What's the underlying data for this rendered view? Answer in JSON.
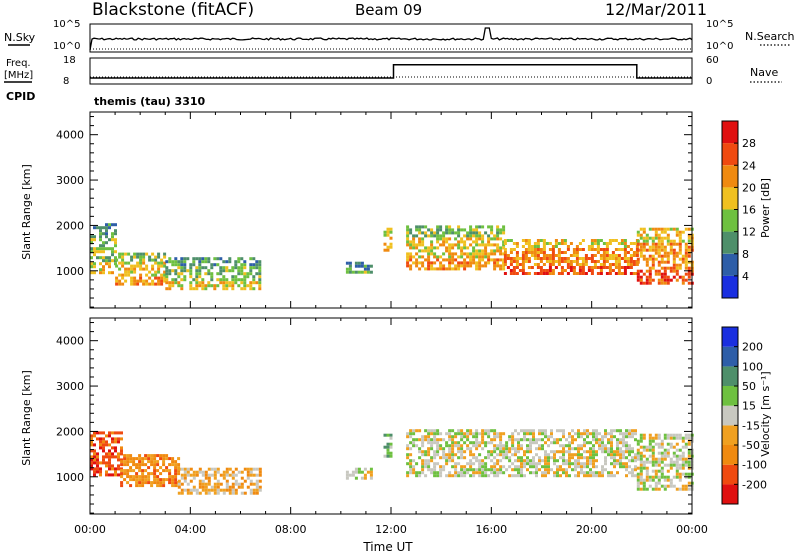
{
  "header": {
    "station": "Blackstone (fitACF)",
    "beam": "Beam 09",
    "date": "12/Mar/2011"
  },
  "nsky_panel": {
    "left_label": "N.Sky",
    "left_ticks": [
      "10^5",
      "10^0"
    ],
    "right_label": "N.Search",
    "right_ticks": [
      "10^5",
      "10^0"
    ]
  },
  "freq_panel": {
    "left_label_1": "Freq.",
    "left_label_2": "[MHz]",
    "left_ticks": [
      "18",
      "8"
    ],
    "right_label": "Nave",
    "right_ticks": [
      "60",
      "0"
    ],
    "cpid_label": "CPID",
    "cpid_text": "themis (tau) 3310",
    "freq_steps": [
      {
        "t0": 0.0,
        "t1": 12.1,
        "mhz": 10.5
      },
      {
        "t0": 12.1,
        "t1": 21.8,
        "mhz": 16.0
      },
      {
        "t0": 21.8,
        "t1": 24.0,
        "mhz": 10.5
      }
    ]
  },
  "x_axis": {
    "ticks": [
      "00:00",
      "04:00",
      "08:00",
      "12:00",
      "16:00",
      "20:00",
      "00:00"
    ],
    "label": "Time UT"
  },
  "chart_data": [
    {
      "type": "heatmap",
      "panel": "power",
      "ylabel": "Slant Range [km]",
      "yticks": [
        "1000",
        "2000",
        "3000",
        "4000"
      ],
      "xlim": [
        0,
        24
      ],
      "ylim": [
        180,
        4500
      ],
      "colorbar_label": "Power [dB]",
      "colorbar_ticks": [
        "4",
        "8",
        "12",
        "16",
        "20",
        "24",
        "28"
      ],
      "colorbar_colors": [
        "#1a2fe0",
        "#2e5ea8",
        "#4e8f6a",
        "#6ec040",
        "#f0c020",
        "#f08a10",
        "#f04a10",
        "#e01010"
      ],
      "echo_regions": [
        {
          "t0": 0.0,
          "t1": 1.0,
          "r0": 950,
          "r1": 2050,
          "level": 3
        },
        {
          "t0": 1.0,
          "t1": 3.0,
          "r0": 720,
          "r1": 1400,
          "level": 4
        },
        {
          "t0": 3.0,
          "t1": 6.8,
          "r0": 620,
          "r1": 1300,
          "level": 3
        },
        {
          "t0": 10.2,
          "t1": 11.2,
          "r0": 950,
          "r1": 1200,
          "level": 2
        },
        {
          "t0": 11.7,
          "t1": 12.0,
          "r0": 1450,
          "r1": 1950,
          "level": 4
        },
        {
          "t0": 12.6,
          "t1": 16.5,
          "r0": 1050,
          "r1": 2000,
          "level": 4
        },
        {
          "t0": 16.5,
          "t1": 21.8,
          "r0": 950,
          "r1": 1700,
          "level": 5
        },
        {
          "t0": 21.8,
          "t1": 24.0,
          "r0": 750,
          "r1": 1950,
          "level": 5
        }
      ]
    },
    {
      "type": "heatmap",
      "panel": "velocity",
      "ylabel": "Slant Range [km]",
      "yticks": [
        "1000",
        "2000",
        "3000",
        "4000"
      ],
      "xlim": [
        0,
        24
      ],
      "ylim": [
        180,
        4500
      ],
      "colorbar_label": "Velocity [m s⁻¹]",
      "colorbar_ticks": [
        "200",
        "100",
        "50",
        "15",
        "-15",
        "-50",
        "-100",
        "-200"
      ],
      "colorbar_colors": [
        "#1a2fe0",
        "#2e5ea8",
        "#4e8f6a",
        "#6ec040",
        "#c8c8c0",
        "#f0a020",
        "#f08a10",
        "#f04a10",
        "#e01010"
      ],
      "echo_regions": [
        {
          "t0": 0.0,
          "t1": 1.2,
          "r0": 1050,
          "r1": 2000,
          "level": 7
        },
        {
          "t0": 1.2,
          "t1": 3.5,
          "r0": 800,
          "r1": 1500,
          "level": 6
        },
        {
          "t0": 3.5,
          "t1": 6.8,
          "r0": 620,
          "r1": 1200,
          "level": 5
        },
        {
          "t0": 10.2,
          "t1": 11.2,
          "r0": 950,
          "r1": 1200,
          "level": 4
        },
        {
          "t0": 11.7,
          "t1": 12.0,
          "r0": 1450,
          "r1": 1950,
          "level": 3
        },
        {
          "t0": 12.6,
          "t1": 21.8,
          "r0": 1000,
          "r1": 2050,
          "level": 4
        },
        {
          "t0": 21.8,
          "t1": 24.0,
          "r0": 750,
          "r1": 1950,
          "level": 4
        }
      ]
    }
  ]
}
